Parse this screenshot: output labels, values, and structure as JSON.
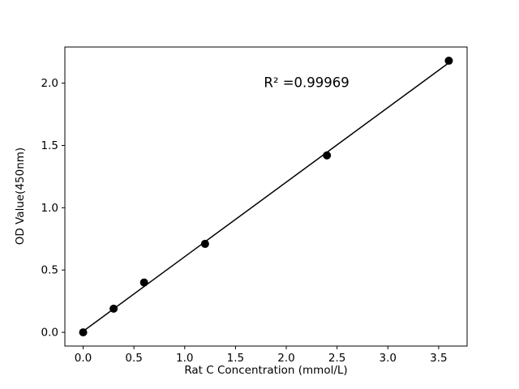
{
  "chart_data": {
    "type": "scatter",
    "title": "",
    "xlabel": "Rat C Concentration (mmol/L)",
    "ylabel": "OD Value(450nm)",
    "x": [
      0.0,
      0.3,
      0.6,
      1.2,
      2.4,
      3.6
    ],
    "y": [
      0.0,
      0.19,
      0.4,
      0.71,
      1.42,
      2.18
    ],
    "fit": {
      "type": "linear",
      "r_squared": 0.99969
    },
    "annotation": {
      "text": "R² =0.99969",
      "x": 2.2,
      "y": 2.0
    },
    "xlim": [
      -0.18,
      3.78
    ],
    "ylim": [
      -0.11,
      2.29
    ],
    "xticks": [
      0.0,
      0.5,
      1.0,
      1.5,
      2.0,
      2.5,
      3.0,
      3.5
    ],
    "yticks": [
      0.0,
      0.5,
      1.0,
      1.5,
      2.0
    ],
    "grid": false,
    "legend": "none",
    "colors": {
      "point": "#000000",
      "line": "#000000",
      "axis": "#000000",
      "background": "#ffffff"
    }
  }
}
